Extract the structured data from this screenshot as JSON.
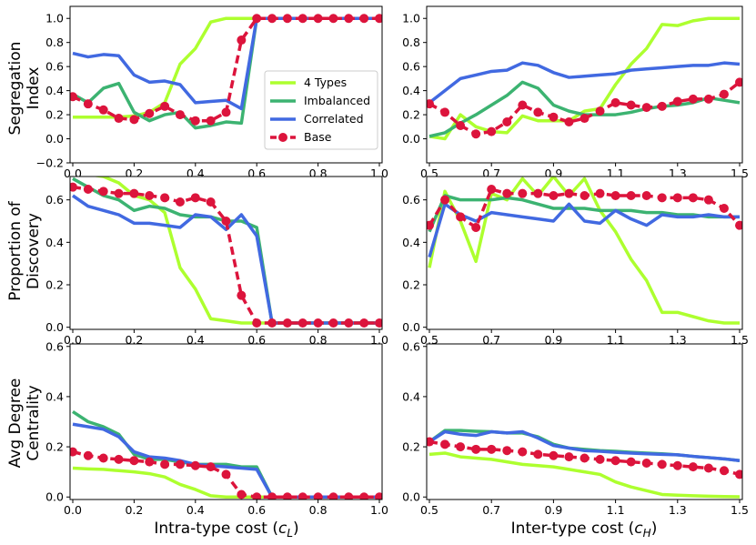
{
  "figure": {
    "colors": {
      "4 Types": "#ADFF2F",
      "Imbalanced": "#3CB371",
      "Correlated": "#4169E1",
      "Base": "#DC143C"
    },
    "ylabels": [
      [
        "Segregation",
        "Index"
      ],
      [
        "Proportion of",
        "Discovery"
      ],
      [
        "Avg Degree",
        "Centrality"
      ]
    ],
    "xlabels": {
      "left": {
        "pre": "Intra-type cost (",
        "var": "c",
        "sub": "L",
        "post": ")"
      },
      "right": {
        "pre": "Inter-type cost (",
        "var": "c",
        "sub": "H",
        "post": ")"
      }
    },
    "legend": {
      "panel": "segregation-left",
      "placement": "lower-right",
      "entries": [
        "4 Types",
        "Imbalanced",
        "Correlated",
        "Base"
      ]
    }
  },
  "chart_data": [
    {
      "id": "segregation-left",
      "type": "line",
      "xlim": [
        0.0,
        1.0
      ],
      "ylim": [
        -0.2,
        1.1
      ],
      "xticks": [
        "0.0",
        "0.2",
        "0.4",
        "0.6",
        "0.8",
        "1.0"
      ],
      "xtick_values": [
        0,
        0.2,
        0.4,
        0.6,
        0.8,
        1.0
      ],
      "yticks": [
        "−0.2",
        "0.0",
        "0.2",
        "0.4",
        "0.6",
        "0.8",
        "1.0"
      ],
      "ytick_values": [
        -0.2,
        0,
        0.2,
        0.4,
        0.6,
        0.8,
        1.0
      ],
      "x": [
        0.0,
        0.05,
        0.1,
        0.15,
        0.2,
        0.25,
        0.3,
        0.35,
        0.4,
        0.45,
        0.5,
        0.55,
        0.6,
        0.65,
        0.7,
        0.75,
        0.8,
        0.85,
        0.9,
        0.95,
        1.0
      ],
      "series": [
        {
          "name": "4 Types",
          "values": [
            0.18,
            0.18,
            0.18,
            0.18,
            0.19,
            0.22,
            0.3,
            0.62,
            0.75,
            0.97,
            1.0,
            1.0,
            1.0,
            1.0,
            1.0,
            1.0,
            1.0,
            1.0,
            1.0,
            1.0,
            1.0
          ]
        },
        {
          "name": "Imbalanced",
          "values": [
            0.37,
            0.3,
            0.42,
            0.46,
            0.22,
            0.15,
            0.2,
            0.22,
            0.09,
            0.11,
            0.14,
            0.13,
            1.0,
            1.0,
            1.0,
            1.0,
            1.0,
            1.0,
            1.0,
            1.0,
            1.0
          ]
        },
        {
          "name": "Correlated",
          "values": [
            0.71,
            0.68,
            0.7,
            0.69,
            0.53,
            0.47,
            0.48,
            0.45,
            0.3,
            0.31,
            0.32,
            0.25,
            1.0,
            1.0,
            1.0,
            1.0,
            1.0,
            1.0,
            1.0,
            1.0,
            1.0
          ]
        },
        {
          "name": "Base",
          "values": [
            0.35,
            0.29,
            0.24,
            0.17,
            0.16,
            0.21,
            0.27,
            0.2,
            0.15,
            0.15,
            0.22,
            0.82,
            1.0,
            1.0,
            1.0,
            1.0,
            1.0,
            1.0,
            1.0,
            1.0,
            1.0
          ]
        }
      ]
    },
    {
      "id": "segregation-right",
      "type": "line",
      "xlim": [
        0.5,
        1.5
      ],
      "ylim": [
        -0.2,
        1.1
      ],
      "xticks": [
        "0.5",
        "0.7",
        "0.9",
        "1.1",
        "1.3",
        "1.5"
      ],
      "xtick_values": [
        0.5,
        0.7,
        0.9,
        1.1,
        1.3,
        1.5
      ],
      "yticks": [
        "0.0",
        "0.2",
        "0.4",
        "0.6",
        "0.8",
        "1.0"
      ],
      "ytick_values": [
        0,
        0.2,
        0.4,
        0.6,
        0.8,
        1.0
      ],
      "x": [
        0.5,
        0.55,
        0.6,
        0.65,
        0.7,
        0.75,
        0.8,
        0.85,
        0.9,
        0.95,
        1.0,
        1.05,
        1.1,
        1.15,
        1.2,
        1.25,
        1.3,
        1.35,
        1.4,
        1.45,
        1.5
      ],
      "series": [
        {
          "name": "4 Types",
          "values": [
            0.02,
            0.0,
            0.2,
            0.1,
            0.06,
            0.05,
            0.19,
            0.15,
            0.15,
            0.15,
            0.23,
            0.25,
            0.45,
            0.62,
            0.75,
            0.95,
            0.94,
            0.98,
            1.0,
            1.0,
            1.0
          ]
        },
        {
          "name": "Imbalanced",
          "values": [
            0.02,
            0.05,
            0.13,
            0.2,
            0.28,
            0.36,
            0.47,
            0.42,
            0.28,
            0.23,
            0.2,
            0.2,
            0.2,
            0.22,
            0.25,
            0.27,
            0.28,
            0.3,
            0.34,
            0.32,
            0.3
          ]
        },
        {
          "name": "Correlated",
          "values": [
            0.3,
            0.4,
            0.5,
            0.53,
            0.56,
            0.57,
            0.63,
            0.61,
            0.55,
            0.51,
            0.52,
            0.53,
            0.54,
            0.57,
            0.58,
            0.59,
            0.6,
            0.61,
            0.61,
            0.63,
            0.62
          ]
        },
        {
          "name": "Base",
          "values": [
            0.29,
            0.22,
            0.11,
            0.04,
            0.06,
            0.14,
            0.28,
            0.22,
            0.18,
            0.14,
            0.17,
            0.23,
            0.3,
            0.28,
            0.26,
            0.27,
            0.31,
            0.33,
            0.33,
            0.37,
            0.47
          ]
        }
      ]
    },
    {
      "id": "discovery-left",
      "type": "line",
      "xlim": [
        0.0,
        1.0
      ],
      "ylim": [
        -0.01,
        0.71
      ],
      "xticks": [
        "0.0",
        "0.2",
        "0.4",
        "0.6",
        "0.8",
        "1.0"
      ],
      "xtick_values": [
        0,
        0.2,
        0.4,
        0.6,
        0.8,
        1.0
      ],
      "yticks": [
        "0.0",
        "0.2",
        "0.4",
        "0.6"
      ],
      "ytick_values": [
        0,
        0.2,
        0.4,
        0.6
      ],
      "x": [
        0.0,
        0.05,
        0.1,
        0.15,
        0.2,
        0.25,
        0.3,
        0.35,
        0.4,
        0.45,
        0.5,
        0.55,
        0.6,
        0.65,
        0.7,
        0.75,
        0.8,
        0.85,
        0.9,
        0.95,
        1.0
      ],
      "series": [
        {
          "name": "4 Types",
          "values": [
            0.72,
            0.72,
            0.71,
            0.68,
            0.62,
            0.6,
            0.54,
            0.28,
            0.18,
            0.04,
            0.03,
            0.02,
            0.02,
            0.02,
            0.02,
            0.02,
            0.02,
            0.02,
            0.02,
            0.02,
            0.02
          ]
        },
        {
          "name": "Imbalanced",
          "values": [
            0.7,
            0.66,
            0.62,
            0.6,
            0.55,
            0.57,
            0.56,
            0.53,
            0.52,
            0.52,
            0.5,
            0.5,
            0.47,
            0.02,
            0.02,
            0.02,
            0.02,
            0.02,
            0.02,
            0.02,
            0.02
          ]
        },
        {
          "name": "Correlated",
          "values": [
            0.62,
            0.57,
            0.55,
            0.53,
            0.49,
            0.49,
            0.48,
            0.47,
            0.53,
            0.52,
            0.46,
            0.53,
            0.43,
            0.02,
            0.02,
            0.02,
            0.02,
            0.02,
            0.02,
            0.02,
            0.02
          ]
        },
        {
          "name": "Base",
          "values": [
            0.66,
            0.65,
            0.64,
            0.63,
            0.63,
            0.62,
            0.61,
            0.59,
            0.61,
            0.59,
            0.5,
            0.15,
            0.02,
            0.02,
            0.02,
            0.02,
            0.02,
            0.02,
            0.02,
            0.02,
            0.02
          ]
        }
      ]
    },
    {
      "id": "discovery-right",
      "type": "line",
      "xlim": [
        0.5,
        1.5
      ],
      "ylim": [
        -0.01,
        0.71
      ],
      "xticks": [
        "0.5",
        "0.7",
        "0.9",
        "1.1",
        "1.3",
        "1.5"
      ],
      "xtick_values": [
        0.5,
        0.7,
        0.9,
        1.1,
        1.3,
        1.5
      ],
      "yticks": [
        "0.0",
        "0.2",
        "0.4",
        "0.6"
      ],
      "ytick_values": [
        0,
        0.2,
        0.4,
        0.6
      ],
      "x": [
        0.5,
        0.55,
        0.6,
        0.65,
        0.7,
        0.75,
        0.8,
        0.85,
        0.9,
        0.95,
        1.0,
        1.05,
        1.1,
        1.15,
        1.2,
        1.25,
        1.3,
        1.35,
        1.4,
        1.45,
        1.5
      ],
      "series": [
        {
          "name": "4 Types",
          "values": [
            0.28,
            0.64,
            0.5,
            0.31,
            0.63,
            0.6,
            0.7,
            0.62,
            0.71,
            0.62,
            0.7,
            0.55,
            0.45,
            0.32,
            0.22,
            0.07,
            0.07,
            0.05,
            0.03,
            0.02,
            0.02
          ]
        },
        {
          "name": "Imbalanced",
          "values": [
            0.45,
            0.62,
            0.6,
            0.6,
            0.6,
            0.61,
            0.6,
            0.58,
            0.56,
            0.56,
            0.56,
            0.55,
            0.55,
            0.55,
            0.54,
            0.54,
            0.53,
            0.53,
            0.52,
            0.52,
            0.52
          ]
        },
        {
          "name": "Correlated",
          "values": [
            0.33,
            0.58,
            0.53,
            0.5,
            0.54,
            0.53,
            0.52,
            0.51,
            0.5,
            0.58,
            0.5,
            0.49,
            0.55,
            0.51,
            0.48,
            0.53,
            0.52,
            0.52,
            0.53,
            0.52,
            0.52
          ]
        },
        {
          "name": "Base",
          "values": [
            0.48,
            0.6,
            0.52,
            0.47,
            0.65,
            0.63,
            0.63,
            0.63,
            0.62,
            0.63,
            0.62,
            0.63,
            0.62,
            0.62,
            0.62,
            0.61,
            0.61,
            0.61,
            0.6,
            0.56,
            0.48
          ]
        }
      ]
    },
    {
      "id": "centrality-left",
      "type": "line",
      "xlim": [
        0.0,
        1.0
      ],
      "ylim": [
        -0.01,
        0.61
      ],
      "xticks": [
        "0.0",
        "0.2",
        "0.4",
        "0.6",
        "0.8",
        "1.0"
      ],
      "xtick_values": [
        0,
        0.2,
        0.4,
        0.6,
        0.8,
        1.0
      ],
      "yticks": [
        "0.0",
        "0.2",
        "0.4",
        "0.6"
      ],
      "ytick_values": [
        0,
        0.2,
        0.4,
        0.6
      ],
      "x": [
        0.0,
        0.05,
        0.1,
        0.15,
        0.2,
        0.25,
        0.3,
        0.35,
        0.4,
        0.45,
        0.5,
        0.55,
        0.6,
        0.65,
        0.7,
        0.75,
        0.8,
        0.85,
        0.9,
        0.95,
        1.0
      ],
      "series": [
        {
          "name": "4 Types",
          "values": [
            0.115,
            0.112,
            0.11,
            0.105,
            0.1,
            0.093,
            0.08,
            0.05,
            0.03,
            0.005,
            0.0,
            0.0,
            0.0,
            0.0,
            0.0,
            0.0,
            0.0,
            0.0,
            0.0,
            0.0,
            0.0
          ]
        },
        {
          "name": "Imbalanced",
          "values": [
            0.34,
            0.3,
            0.28,
            0.25,
            0.17,
            0.15,
            0.15,
            0.14,
            0.13,
            0.13,
            0.13,
            0.12,
            0.12,
            0.0,
            0.0,
            0.0,
            0.0,
            0.0,
            0.0,
            0.0,
            0.0
          ]
        },
        {
          "name": "Correlated",
          "values": [
            0.29,
            0.28,
            0.27,
            0.24,
            0.18,
            0.16,
            0.155,
            0.145,
            0.13,
            0.125,
            0.12,
            0.115,
            0.11,
            0.0,
            0.0,
            0.0,
            0.0,
            0.0,
            0.0,
            0.0,
            0.0
          ]
        },
        {
          "name": "Base",
          "values": [
            0.18,
            0.165,
            0.155,
            0.15,
            0.145,
            0.14,
            0.13,
            0.13,
            0.125,
            0.12,
            0.09,
            0.01,
            0.0,
            0.0,
            0.0,
            0.0,
            0.0,
            0.0,
            0.0,
            0.0,
            0.0
          ]
        }
      ]
    },
    {
      "id": "centrality-right",
      "type": "line",
      "xlim": [
        0.5,
        1.5
      ],
      "ylim": [
        -0.01,
        0.61
      ],
      "xticks": [
        "0.5",
        "0.7",
        "0.9",
        "1.1",
        "1.3",
        "1.5"
      ],
      "xtick_values": [
        0.5,
        0.7,
        0.9,
        1.1,
        1.3,
        1.5
      ],
      "yticks": [
        "0.0",
        "0.2",
        "0.4",
        "0.6"
      ],
      "ytick_values": [
        0,
        0.2,
        0.4,
        0.6
      ],
      "x": [
        0.5,
        0.55,
        0.6,
        0.65,
        0.7,
        0.75,
        0.8,
        0.85,
        0.9,
        0.95,
        1.0,
        1.05,
        1.1,
        1.15,
        1.2,
        1.25,
        1.3,
        1.35,
        1.4,
        1.45,
        1.5
      ],
      "series": [
        {
          "name": "4 Types",
          "values": [
            0.17,
            0.175,
            0.16,
            0.155,
            0.15,
            0.14,
            0.13,
            0.125,
            0.12,
            0.11,
            0.1,
            0.09,
            0.06,
            0.04,
            0.025,
            0.01,
            0.007,
            0.005,
            0.003,
            0.002,
            0.001
          ]
        },
        {
          "name": "Imbalanced",
          "values": [
            0.22,
            0.265,
            0.265,
            0.262,
            0.26,
            0.255,
            0.255,
            0.24,
            0.21,
            0.195,
            0.19,
            0.185,
            0.182,
            0.178,
            0.175,
            0.172,
            0.168,
            0.162,
            0.157,
            0.152,
            0.145
          ]
        },
        {
          "name": "Correlated",
          "values": [
            0.22,
            0.26,
            0.25,
            0.245,
            0.26,
            0.255,
            0.26,
            0.235,
            0.205,
            0.195,
            0.185,
            0.182,
            0.178,
            0.175,
            0.172,
            0.17,
            0.168,
            0.162,
            0.157,
            0.152,
            0.145
          ]
        },
        {
          "name": "Base",
          "values": [
            0.22,
            0.21,
            0.2,
            0.19,
            0.19,
            0.185,
            0.18,
            0.17,
            0.165,
            0.16,
            0.155,
            0.15,
            0.145,
            0.14,
            0.135,
            0.13,
            0.125,
            0.12,
            0.115,
            0.105,
            0.09
          ]
        }
      ]
    }
  ]
}
